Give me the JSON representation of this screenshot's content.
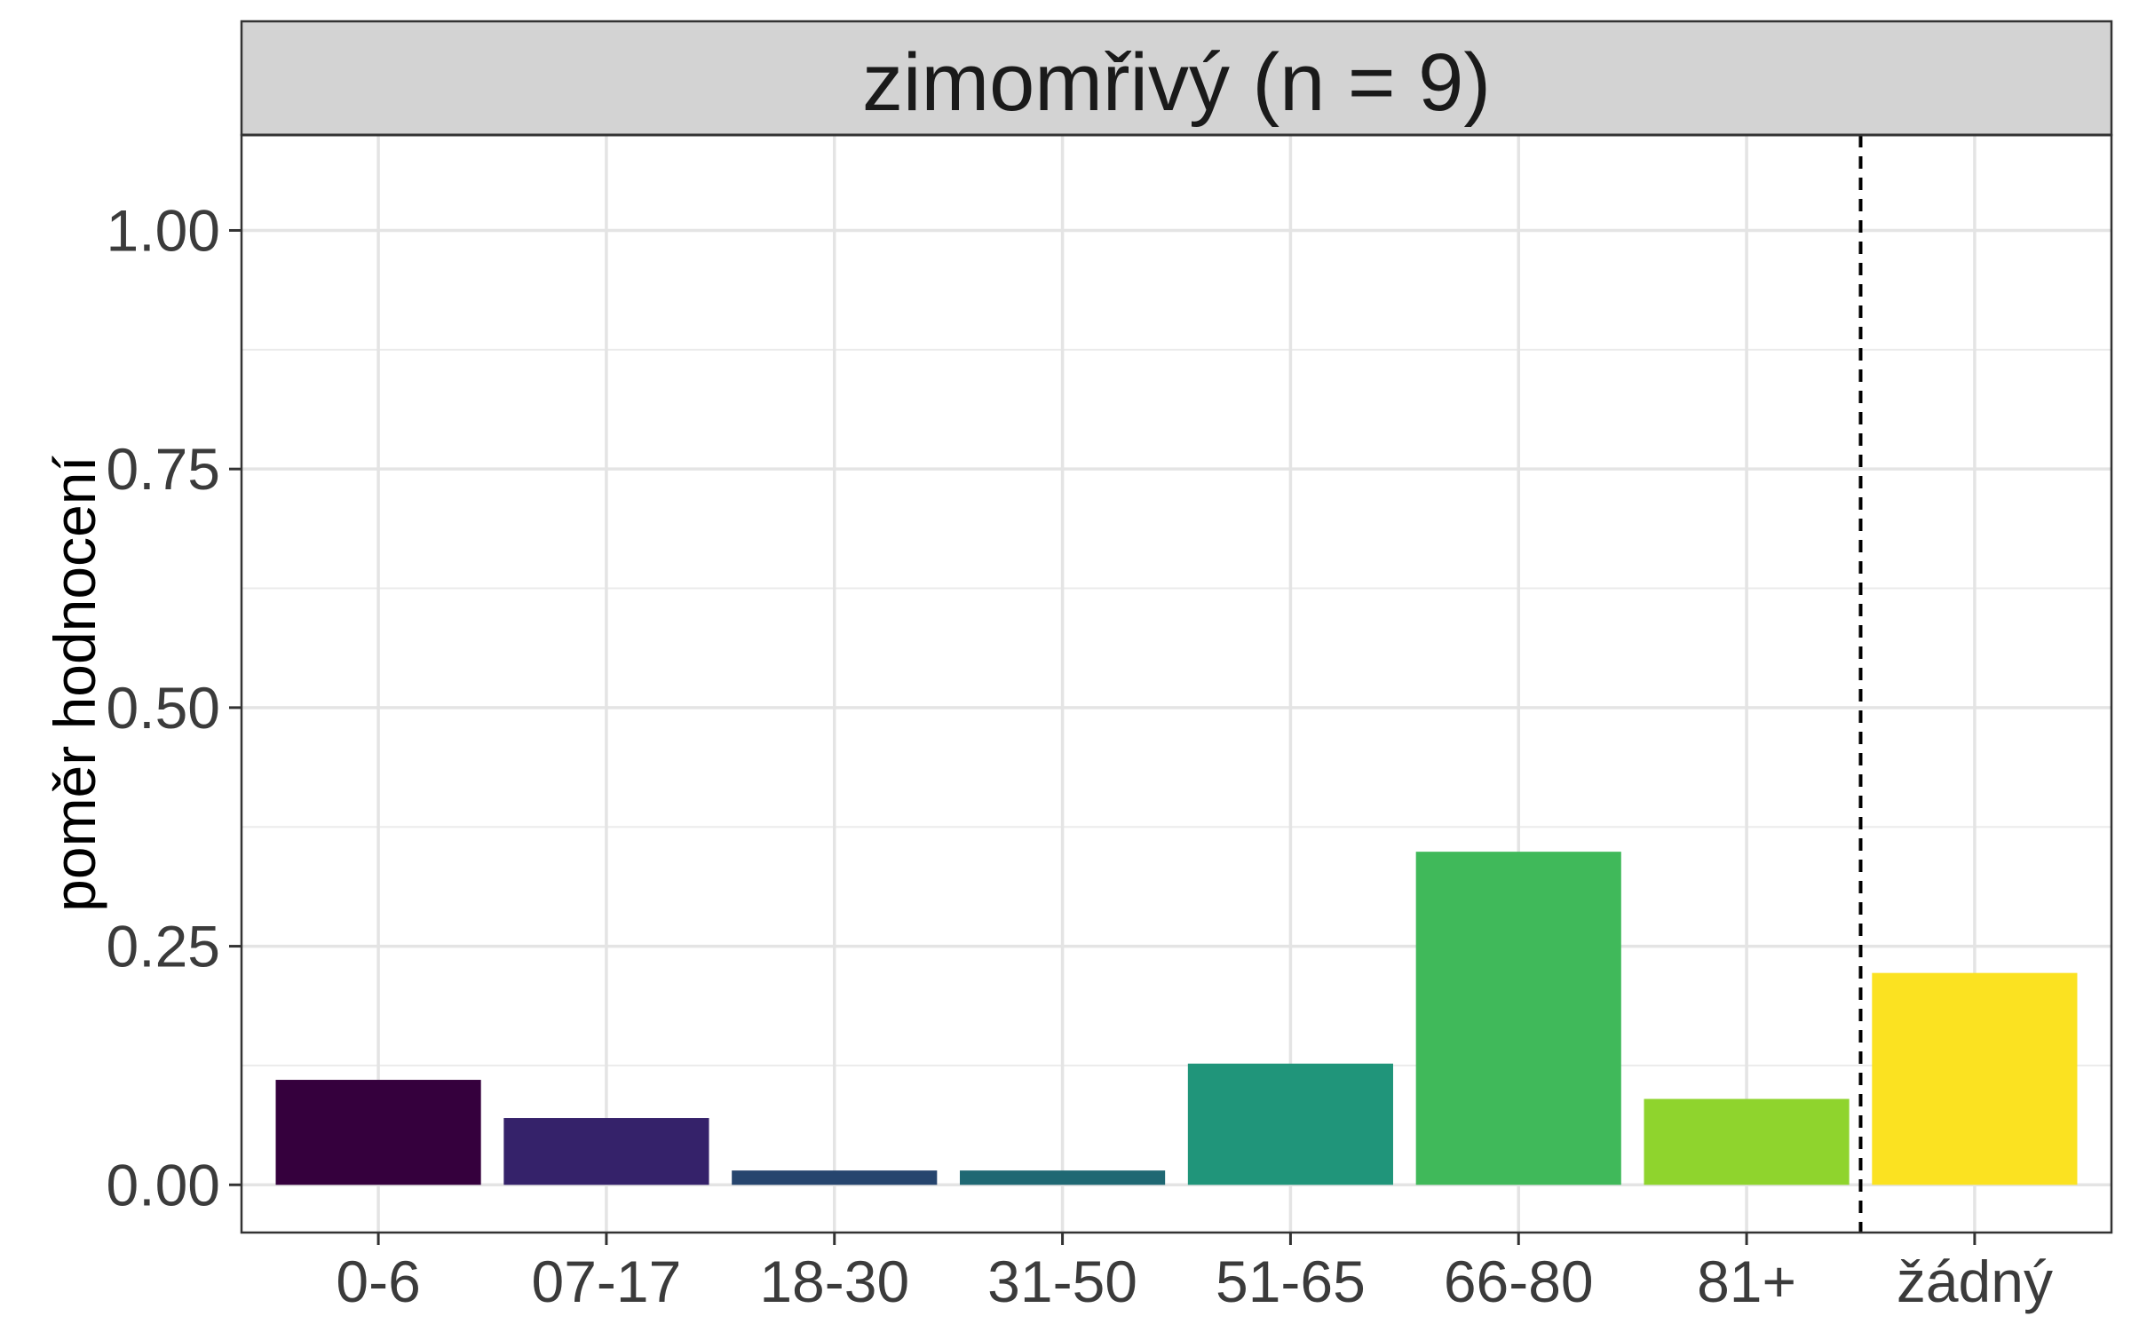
{
  "chart_data": {
    "type": "bar",
    "facet_title": "zimomřivý (n = 9)",
    "ylabel": "poměr hodnocení",
    "xlabel": "",
    "categories": [
      "0-6",
      "07-17",
      "18-30",
      "31-50",
      "51-65",
      "66-80",
      "81+",
      "žádný"
    ],
    "values": [
      0.11,
      0.07,
      0.015,
      0.015,
      0.127,
      0.349,
      0.09,
      0.222
    ],
    "colors": [
      "#35003D",
      "#35226A",
      "#26456E",
      "#1F6873",
      "#20957A",
      "#40B95A",
      "#8FD42D",
      "#FBE221"
    ],
    "ylim": [
      -0.05,
      1.1
    ],
    "yticks": [
      0.0,
      0.25,
      0.5,
      0.75,
      1.0
    ],
    "ytick_labels": [
      "0.00",
      "0.25",
      "0.50",
      "0.75",
      "1.00"
    ],
    "separator_after_category": "81+",
    "grid": true,
    "legend": "none"
  }
}
